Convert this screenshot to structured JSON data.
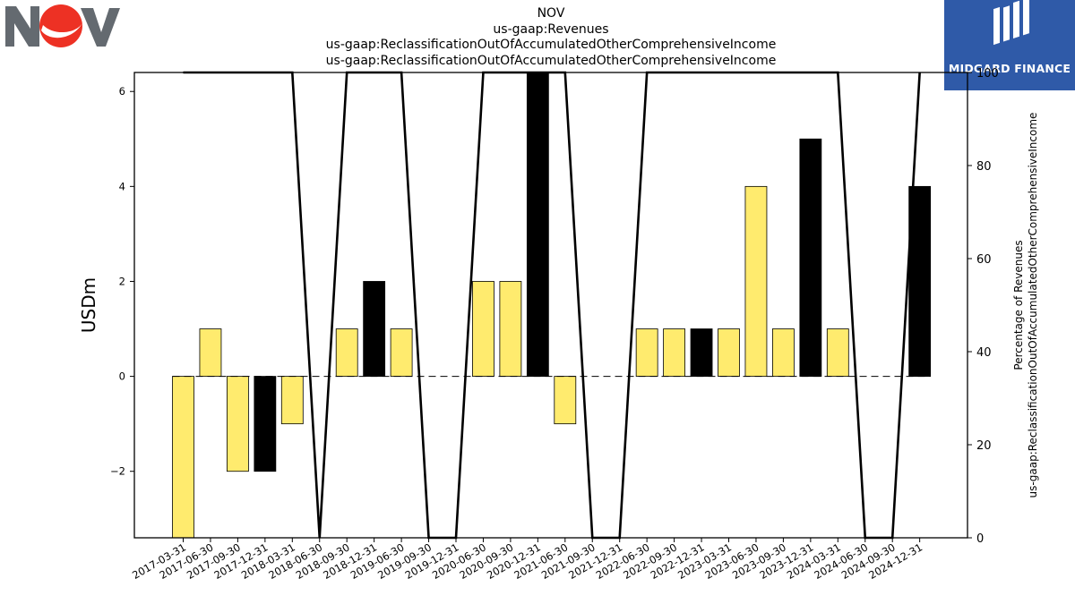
{
  "company": {
    "logo_text": "NOV"
  },
  "watermark": {
    "brand": "MIDGARD FINANCE"
  },
  "chart_data": {
    "type": "bar",
    "title": "NOV",
    "subtitle_lines": [
      "us-gaap:Revenues",
      "us-gaap:ReclassificationOutOfAccumulatedOtherComprehensiveIncome",
      "us-gaap:ReclassificationOutOfAccumulatedOtherComprehensiveIncome"
    ],
    "ylabel": "USDm",
    "y2label_lines": [
      "Percentage of Revenues",
      "us-gaap:ReclassificationOutOfAccumulatedOtherComprehensiveIncome"
    ],
    "ylim": [
      -3.4,
      6.4
    ],
    "y2lim": [
      0,
      100
    ],
    "yticks": [
      -2,
      0,
      2,
      4,
      6
    ],
    "yticklabels": [
      "−2",
      "0",
      "2",
      "4",
      "6"
    ],
    "y2ticks": [
      0,
      20,
      40,
      60,
      80,
      100
    ],
    "categories": [
      "2017-03-31",
      "2017-06-30",
      "2017-09-30",
      "2017-12-31",
      "2018-03-31",
      "2018-06-30",
      "2018-09-30",
      "2018-12-31",
      "2019-06-30",
      "2019-09-30",
      "2019-12-31",
      "2020-06-30",
      "2020-09-30",
      "2020-12-31",
      "2021-06-30",
      "2021-09-30",
      "2021-12-31",
      "2022-06-30",
      "2022-09-30",
      "2022-12-31",
      "2023-03-31",
      "2023-06-30",
      "2023-09-30",
      "2023-12-31",
      "2024-03-31",
      "2024-06-30",
      "2024-09-30",
      "2024-12-31"
    ],
    "values": [
      -3.4,
      1,
      -2,
      -2,
      -1,
      0,
      1,
      2,
      1,
      0,
      0,
      2,
      2,
      6.4,
      -1,
      0,
      0,
      1,
      1,
      1,
      1,
      4,
      1,
      5,
      1,
      0,
      0,
      4
    ],
    "bar_colors": [
      "#ffeb6e",
      "#ffeb6e",
      "#ffeb6e",
      "#000000",
      "#ffeb6e",
      "#ffeb6e",
      "#ffeb6e",
      "#000000",
      "#ffeb6e",
      "#ffeb6e",
      "#ffeb6e",
      "#ffeb6e",
      "#ffeb6e",
      "#000000",
      "#ffeb6e",
      "#ffeb6e",
      "#ffeb6e",
      "#ffeb6e",
      "#ffeb6e",
      "#000000",
      "#ffeb6e",
      "#ffeb6e",
      "#ffeb6e",
      "#000000",
      "#ffeb6e",
      "#ffeb6e",
      "#ffeb6e",
      "#000000"
    ],
    "percentage_line": [
      100,
      100,
      100,
      100,
      100,
      0,
      100,
      100,
      100,
      0,
      0,
      100,
      100,
      100,
      100,
      0,
      0,
      100,
      100,
      100,
      100,
      100,
      100,
      100,
      100,
      0,
      0,
      100
    ],
    "grid": false,
    "legend": "none"
  }
}
